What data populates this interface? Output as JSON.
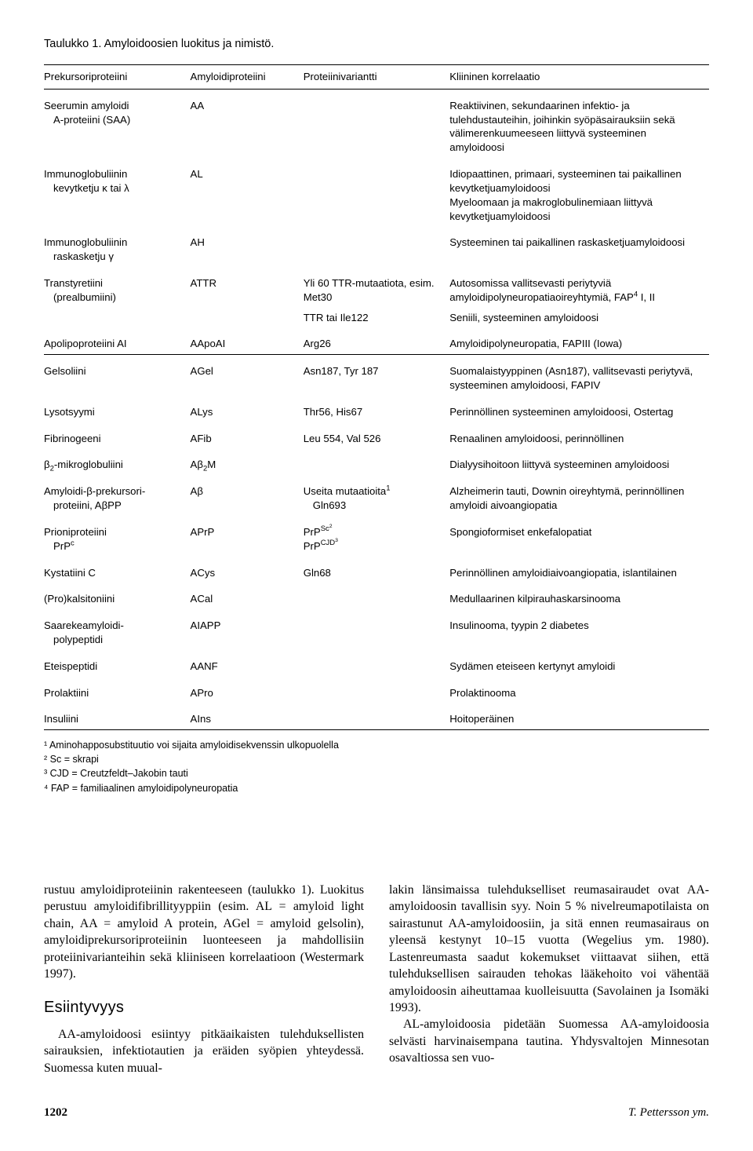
{
  "table_caption": "Taulukko 1. Amyloidoosien luokitus ja nimistö.",
  "headers": {
    "c0": "Prekursoriproteiini",
    "c1": "Amyloidiproteiini",
    "c2": "Proteiinivariantti",
    "c3": "Kliininen korrelaatio"
  },
  "rows": [
    {
      "c0": "Seerumin amyloidi",
      "c0s": "A-proteiini (SAA)",
      "c1": "AA",
      "c2": "",
      "c3": "Reaktiivinen, sekundaarinen infektio- ja tulehdustauteihin, joihinkin syöpäsairauksiin sekä välimerenkuumeeseen liittyvä systeeminen amyloidoosi",
      "group": true
    },
    {
      "c0": "Immunoglobuliinin",
      "c0s": "kevytketju κ tai λ",
      "c1": "AL",
      "c2": "",
      "c3": "Idiopaattinen, primaari, systeeminen tai paikallinen kevytketjuamyloidoosi\nMyeloomaan ja makroglobulinemiaan liittyvä kevytketjuamyloidoosi",
      "group": true
    },
    {
      "c0": "Immunoglobuliinin",
      "c0s": "raskasketju γ",
      "c1": "AH",
      "c2": "",
      "c3": "Systeeminen tai paikallinen raskasketjuamyloidoosi",
      "group": true
    },
    {
      "c0": "Transtyretiini",
      "c0s": "(prealbumiini)",
      "c1": "ATTR",
      "c2": "Yli 60 TTR-mutaatiota, esim. Met30",
      "c3_html": "Autosomissa vallitsevasti periytyviä amyloidipolyneuropatiaoireyhtymiä, FAP<span class=\"sup\">4</span> I, II",
      "group": true
    },
    {
      "c0": "",
      "c1": "",
      "c2": "TTR tai Ile122",
      "c3": "Seniili, systeeminen amyloidoosi"
    },
    {
      "c0": "Apolipoproteiini AI",
      "c1": "AApoAI",
      "c2": "Arg26",
      "c3": "Amyloidipolyneuropatia, FAPIII (Iowa)",
      "group": true
    },
    {
      "sec": true,
      "c0": "Gelsoliini",
      "c1": "AGel",
      "c2": "Asn187, Tyr 187",
      "c3": "Suomalaistyyppinen (Asn187), vallitsevasti periytyvä, systeeminen amyloidoosi, FAPIV"
    },
    {
      "c0": "Lysotsyymi",
      "c1": "ALys",
      "c2": "Thr56, His67",
      "c3": "Perinnöllinen systeeminen amyloidoosi, Ostertag",
      "group": true
    },
    {
      "c0": "Fibrinogeeni",
      "c1": "AFib",
      "c2": "Leu 554, Val 526",
      "c3": "Renaalinen amyloidoosi, perinnöllinen",
      "group": true
    },
    {
      "c0_html": "β<span class=\"subscript\">2</span>-mikroglobuliini",
      "c1_html": "Aβ<span class=\"subscript\">2</span>M",
      "c2": "",
      "c3": "Dialyysihoitoon liittyvä systeeminen amyloidoosi",
      "group": true
    },
    {
      "c0": "Amyloidi-β-prekursori-",
      "c0s": "proteiini, AβPP",
      "c1": "Aβ",
      "c2_html": "Useita mutaatioita<span class=\"sup\">1</span><span class=\"sub\">Gln693</span>",
      "c3": "Alzheimerin tauti, Downin oireyhtymä, perinnöllinen amyloidi aivoangiopatia",
      "group": true
    },
    {
      "c0": "Prioniproteiini",
      "c0s_html": "PrP<span class=\"sup\">c</span>",
      "c1": "APrP",
      "c2_html": "PrP<span class=\"sup\">Sc<span class=\"sup\">2</span></span><br>PrP<span class=\"sup\">CJD<span class=\"sup\">3</span></span>",
      "c3": "Spongioformiset enkefalopatiat",
      "group": true
    },
    {
      "c0": "Kystatiini C",
      "c1": "ACys",
      "c2": "Gln68",
      "c3": "Perinnöllinen amyloidiaivoangiopatia, islantilainen",
      "group": true
    },
    {
      "c0": "(Pro)kalsitoniini",
      "c1": "ACal",
      "c2": "",
      "c3": "Medullaarinen kilpirauhaskarsinooma",
      "group": true
    },
    {
      "c0": "Saarekeamyloidi-",
      "c0s": "polypeptidi",
      "c1": "AIAPP",
      "c2": "",
      "c3": "Insulinooma, tyypin 2 diabetes",
      "group": true
    },
    {
      "c0": "Eteispeptidi",
      "c1": "AANF",
      "c2": "",
      "c3": "Sydämen eteiseen kertynyt amyloidi",
      "group": true
    },
    {
      "c0": "Prolaktiini",
      "c1": "APro",
      "c2": "",
      "c3": "Prolaktinooma",
      "group": true
    },
    {
      "bottom": true,
      "c0": "Insuliini",
      "c1": "AIns",
      "c2": "",
      "c3": "Hoitoperäinen",
      "group": true
    }
  ],
  "footnotes": {
    "f1": "¹ Aminohapposubstituutio voi sijaita amyloidisekvenssin ulkopuolella",
    "f2": "² Sc = skrapi",
    "f3": "³ CJD = Creutzfeldt–Jakobin tauti",
    "f4": "⁴ FAP = familiaalinen amyloidipolyneuropatia"
  },
  "body": {
    "left1": "rustuu amyloidiproteiinin rakenteeseen (taulukko 1). Luokitus perustuu amyloidifibrillityyppiin (esim. AL = amyloid light chain, AA = amyloid A protein, AGel = amyloid gelsolin), amyloidiprekursoriproteiinin luonteeseen ja mahdollisiin proteiinivarianteihin sekä kliiniseen korrelaatioon (Westermark 1997).",
    "left_h": "Esiintyvyys",
    "left2": "AA-amyloidoosi esiintyy pitkäaikaisten tulehduksellisten sairauksien, infektiotautien ja eräiden syöpien yhteydessä. Suomessa kuten muual-",
    "right1": "lakin länsimaissa tulehdukselliset reumasairaudet ovat AA-amyloidoosin tavallisin syy. Noin 5 % nivelreumapotilaista on sairastunut AA-amyloidoosiin, ja sitä ennen reumasairaus on yleensä kestynyt 10–15 vuotta (Wegelius ym. 1980). Lastenreumasta saadut kokemukset viittaavat siihen, että tulehduksellisen sairauden tehokas lääkehoito voi vähentää amyloidoosin aiheuttamaa kuolleisuutta (Savolainen ja Isomäki 1993).",
    "right2": "AL-amyloidoosia pidetään Suomessa AA-amyloidoosia selvästi harvinaisempana tautina. Yhdysvaltojen Minnesotan osavaltiossa sen vuo-"
  },
  "footer": {
    "page": "1202",
    "author": "T. Pettersson ym."
  }
}
